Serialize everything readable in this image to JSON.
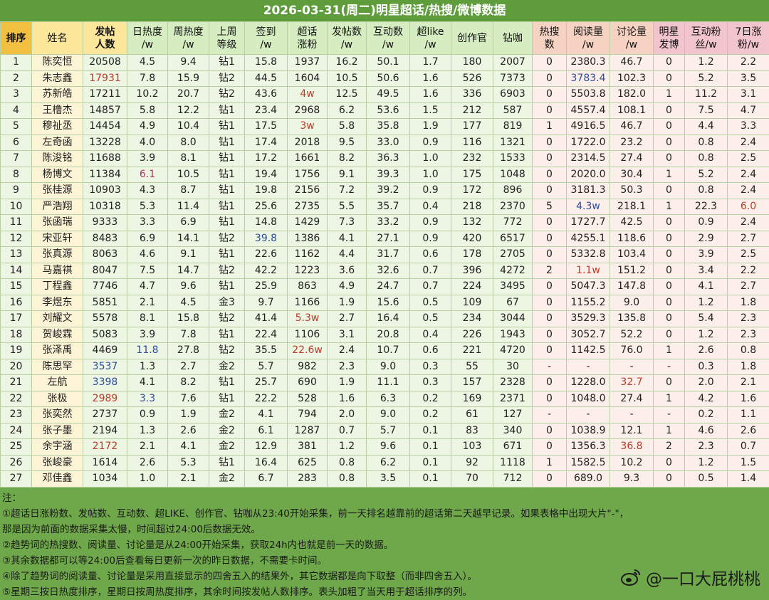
{
  "title": "2026-03-31(周二)明星超话/热搜/微博数据",
  "table": {
    "header": [
      [
        "排序"
      ],
      [
        "姓名"
      ],
      [
        "发帖",
        "人数"
      ],
      [
        "日热度",
        "/w"
      ],
      [
        "周热度",
        "/w"
      ],
      [
        "上周",
        "等级"
      ],
      [
        "签到",
        "/w"
      ],
      [
        "超话",
        "涨粉"
      ],
      [
        "发帖数",
        "/w"
      ],
      [
        "互动数",
        "/w"
      ],
      [
        "超like",
        "/w"
      ],
      [
        "创作官"
      ],
      [
        "钻咖"
      ],
      [
        "热搜",
        "数"
      ],
      [
        "阅读量",
        "/w"
      ],
      [
        "讨论量",
        "/w"
      ],
      [
        "明星",
        "发博"
      ],
      [
        "互动粉",
        "丝/w"
      ],
      [
        "7日涨",
        "粉/w"
      ]
    ],
    "rows": [
      [
        "1",
        "陈奕恒",
        "20508",
        "4.5",
        "9.4",
        "钻1",
        "15.8",
        "1937",
        "16.2",
        "50.1",
        "1.7",
        "180",
        "2007",
        "0",
        "2380.3",
        "46.7",
        "0",
        "1.2",
        "2.2"
      ],
      [
        "2",
        "朱志鑫",
        {
          "text": "17931",
          "color": "#c0392b"
        },
        "7.8",
        "15.9",
        "钻2",
        "44.5",
        "1604",
        "10.5",
        "50.6",
        "1.6",
        "526",
        "7373",
        "0",
        {
          "text": "3783.4",
          "color": "#2e4c9c"
        },
        "102.3",
        "0",
        "5.2",
        "3.5"
      ],
      [
        "3",
        "苏新皓",
        "17211",
        "10.2",
        "20.7",
        "钻2",
        "43.6",
        {
          "text": "4w",
          "color": "#c0392b"
        },
        "12.5",
        "49.5",
        "1.6",
        "336",
        "6903",
        "0",
        "5503.8",
        "182.0",
        "1",
        "11.2",
        "3.1"
      ],
      [
        "4",
        "王橹杰",
        "14857",
        "5.8",
        "12.2",
        "钻1",
        "23.4",
        "2968",
        "6.2",
        "53.6",
        "1.5",
        "212",
        "587",
        "0",
        "4557.4",
        "108.1",
        "0",
        "7.5",
        "4.7"
      ],
      [
        "5",
        "穆祉丞",
        "14454",
        "4.9",
        "10.4",
        "钻1",
        "17.5",
        {
          "text": "3w",
          "color": "#c0392b"
        },
        "5.8",
        "35.8",
        "1.9",
        "177",
        "819",
        "1",
        "4916.5",
        "46.7",
        "0",
        "4.4",
        "3.3"
      ],
      [
        "6",
        "左奇函",
        "13228",
        "4.0",
        "8.0",
        "钻1",
        "17.4",
        "2018",
        "9.5",
        "33.0",
        "0.9",
        "116",
        "1321",
        "0",
        "1722.0",
        "23.2",
        "0",
        "0.8",
        "2.4"
      ],
      [
        "7",
        "陈浚铭",
        "11688",
        "3.9",
        "8.1",
        "钻1",
        "17.2",
        "1661",
        "8.2",
        "36.3",
        "1.0",
        "232",
        "1533",
        "0",
        "2314.5",
        "27.4",
        "0",
        "0.8",
        "2.5"
      ],
      [
        "8",
        "杨博文",
        "11384",
        {
          "text": "6.1",
          "color": "#b0306a"
        },
        "10.5",
        "钻1",
        "19.4",
        "1756",
        "9.1",
        "39.3",
        "1.0",
        "175",
        "1048",
        "0",
        "2020.0",
        "30.4",
        "1",
        "5.2",
        "2.4"
      ],
      [
        "9",
        "张桂源",
        "10903",
        "4.3",
        "8.7",
        "钻1",
        "19.8",
        "2156",
        "7.2",
        "39.2",
        "0.9",
        "172",
        "896",
        "0",
        "3181.3",
        "50.3",
        "0",
        "0.8",
        "2.4"
      ],
      [
        "10",
        "严浩翔",
        "10318",
        "5.3",
        "11.4",
        "钻1",
        "25.6",
        "2735",
        "5.5",
        "35.7",
        "0.4",
        "218",
        "2370",
        "5",
        {
          "text": "4.3w",
          "color": "#2e4c9c"
        },
        "218.1",
        "1",
        "22.3",
        {
          "text": "6.0",
          "color": "#c0392b"
        }
      ],
      [
        "11",
        "张函瑞",
        "9333",
        "3.3",
        "6.9",
        "钻1",
        "14.8",
        "1429",
        "7.3",
        "33.2",
        "0.9",
        "132",
        "772",
        "0",
        "1727.7",
        "42.5",
        "0",
        "0.9",
        "2.4"
      ],
      [
        "12",
        "宋亚轩",
        "8483",
        "6.9",
        "14.1",
        "钻2",
        {
          "text": "39.8",
          "color": "#2e4c9c"
        },
        "1386",
        "4.1",
        "27.1",
        "0.9",
        "420",
        "6517",
        "0",
        "4255.1",
        "118.6",
        "0",
        "2.9",
        "2.7"
      ],
      [
        "13",
        "张真源",
        "8063",
        "4.6",
        "9.1",
        "钻1",
        "22.6",
        "1162",
        "4.4",
        "31.7",
        "0.6",
        "178",
        "2705",
        "0",
        "5332.8",
        "103.4",
        "0",
        "3.9",
        "2.5"
      ],
      [
        "14",
        "马嘉祺",
        "8047",
        "7.5",
        "14.7",
        "钻2",
        "42.2",
        "1223",
        "3.6",
        "32.6",
        "0.7",
        "396",
        "4272",
        "2",
        {
          "text": "1.1w",
          "color": "#c0392b"
        },
        "151.2",
        "0",
        "3.4",
        "2.2"
      ],
      [
        "15",
        "丁程鑫",
        "7746",
        "4.7",
        "9.6",
        "钻1",
        "25.9",
        "863",
        "4.9",
        "24.7",
        "0.7",
        "224",
        "3495",
        "0",
        "5047.3",
        "147.8",
        "0",
        "4.1",
        "2.7"
      ],
      [
        "16",
        "李煜东",
        "5851",
        "2.1",
        "4.5",
        "金3",
        "9.7",
        "1166",
        "1.9",
        "15.6",
        "0.5",
        "109",
        "67",
        "0",
        "1155.2",
        "9.0",
        "0",
        "1.2",
        "1.8"
      ],
      [
        "17",
        "刘耀文",
        "5578",
        "8.1",
        "15.8",
        "钻2",
        "41.4",
        {
          "text": "5.3w",
          "color": "#c0392b"
        },
        "2.7",
        "16.4",
        "0.5",
        "234",
        "3044",
        "0",
        "3529.3",
        "135.8",
        "0",
        "5.4",
        "2.3"
      ],
      [
        "18",
        "贺峻霖",
        "5083",
        "3.9",
        "7.8",
        "钻1",
        "22.4",
        "1106",
        "3.1",
        "20.8",
        "0.4",
        "226",
        "1943",
        "0",
        "3052.7",
        "52.2",
        "0",
        "1.2",
        "2.3"
      ],
      [
        "19",
        "张泽禹",
        "4469",
        {
          "text": "11.8",
          "color": "#2e4c9c"
        },
        "27.8",
        "钻2",
        "35.5",
        {
          "text": "22.6w",
          "color": "#c0392b"
        },
        "2.4",
        "10.7",
        "0.6",
        "221",
        "4720",
        "0",
        "1142.5",
        "76.0",
        "1",
        "2.6",
        "0.8"
      ],
      [
        "20",
        "陈思罕",
        {
          "text": "3537",
          "color": "#2e4c9c"
        },
        "1.3",
        "2.7",
        "金2",
        "5.7",
        "982",
        "2.3",
        "9.0",
        "0.3",
        "55",
        "30",
        "-",
        "-",
        "-",
        "-",
        "0.3",
        "1.8"
      ],
      [
        "21",
        "左航",
        {
          "text": "3398",
          "color": "#2e4c9c"
        },
        "4.1",
        "8.2",
        "钻1",
        "25.7",
        "690",
        "1.9",
        "11.1",
        "0.3",
        "157",
        "2328",
        "0",
        "1228.0",
        {
          "text": "32.7",
          "color": "#c0392b"
        },
        "0",
        "2.0",
        "2.1"
      ],
      [
        "22",
        "张极",
        {
          "text": "2989",
          "color": "#c0392b"
        },
        {
          "text": "3.3",
          "color": "#2e4c9c"
        },
        "7.6",
        "钻1",
        "22.2",
        "528",
        "1.6",
        "6.3",
        "0.2",
        "169",
        "2371",
        "0",
        "1048.0",
        "27.4",
        "1",
        "4.2",
        "1.6"
      ],
      [
        "23",
        "张奕然",
        "2737",
        "0.9",
        "1.9",
        "金2",
        "4.1",
        "794",
        "2.0",
        "9.0",
        "0.2",
        "61",
        "127",
        "-",
        "-",
        "-",
        "-",
        "0.2",
        "1.1"
      ],
      [
        "24",
        "张子墨",
        "2194",
        "1.3",
        "2.6",
        "金2",
        "6.1",
        "1287",
        "0.7",
        "5.7",
        "0.1",
        "83",
        "340",
        "0",
        "1038.9",
        "12.1",
        "1",
        "4.6",
        "2.6"
      ],
      [
        "25",
        "余宇涵",
        {
          "text": "2172",
          "color": "#c0392b"
        },
        "2.1",
        "4.1",
        "金2",
        "12.9",
        "381",
        "1.2",
        "9.6",
        "0.1",
        "103",
        "671",
        "0",
        "1356.3",
        {
          "text": "36.8",
          "color": "#c0392b"
        },
        "2",
        "2.3",
        "0.7"
      ],
      [
        "26",
        "张峻豪",
        "1614",
        "2.6",
        "5.3",
        "钻1",
        "16.4",
        "625",
        "0.8",
        "6.2",
        "0.1",
        "92",
        "1118",
        "1",
        "1582.5",
        "10.2",
        "0",
        "1.2",
        "1.5"
      ],
      [
        "27",
        "邓佳鑫",
        "1034",
        "1.0",
        "2.1",
        "金2",
        "6.7",
        "283",
        "0.8",
        "3.5",
        "0.1",
        "70",
        "712",
        "0",
        "689.0",
        "9.3",
        "0",
        "0.5",
        "1.4"
      ]
    ]
  },
  "notes": [
    "注：",
    "①超话日涨粉数、发帖数、互动数、超LIKE、创作官、钻咖从23:40开始采集，前一天排名越靠前的超话第二天越早记录。如果表格中出现大片\"-\"，",
    "那是因为前面的数据采集太慢，时间超过24:00后数据无效。",
    "②趋势词的热搜数、阅读量、讨论量是从24:00开始采集，获取24h内也就是前一天的数据。",
    "③其余数据都可以等24:00后查看每日更新一次的昨日数据，不需要卡时间。",
    "④除了趋势词的阅读量、讨论量是采用直接显示的四舍五入的结果外，其它数据都是向下取整（而非四舍五入）。",
    "⑤星期三按日热度排序，星期日按周热度排序，其余时间按发帖人数排序。表头加粗了当天用于超话排序的列。"
  ],
  "watermark": "@一口大屁桃桃"
}
